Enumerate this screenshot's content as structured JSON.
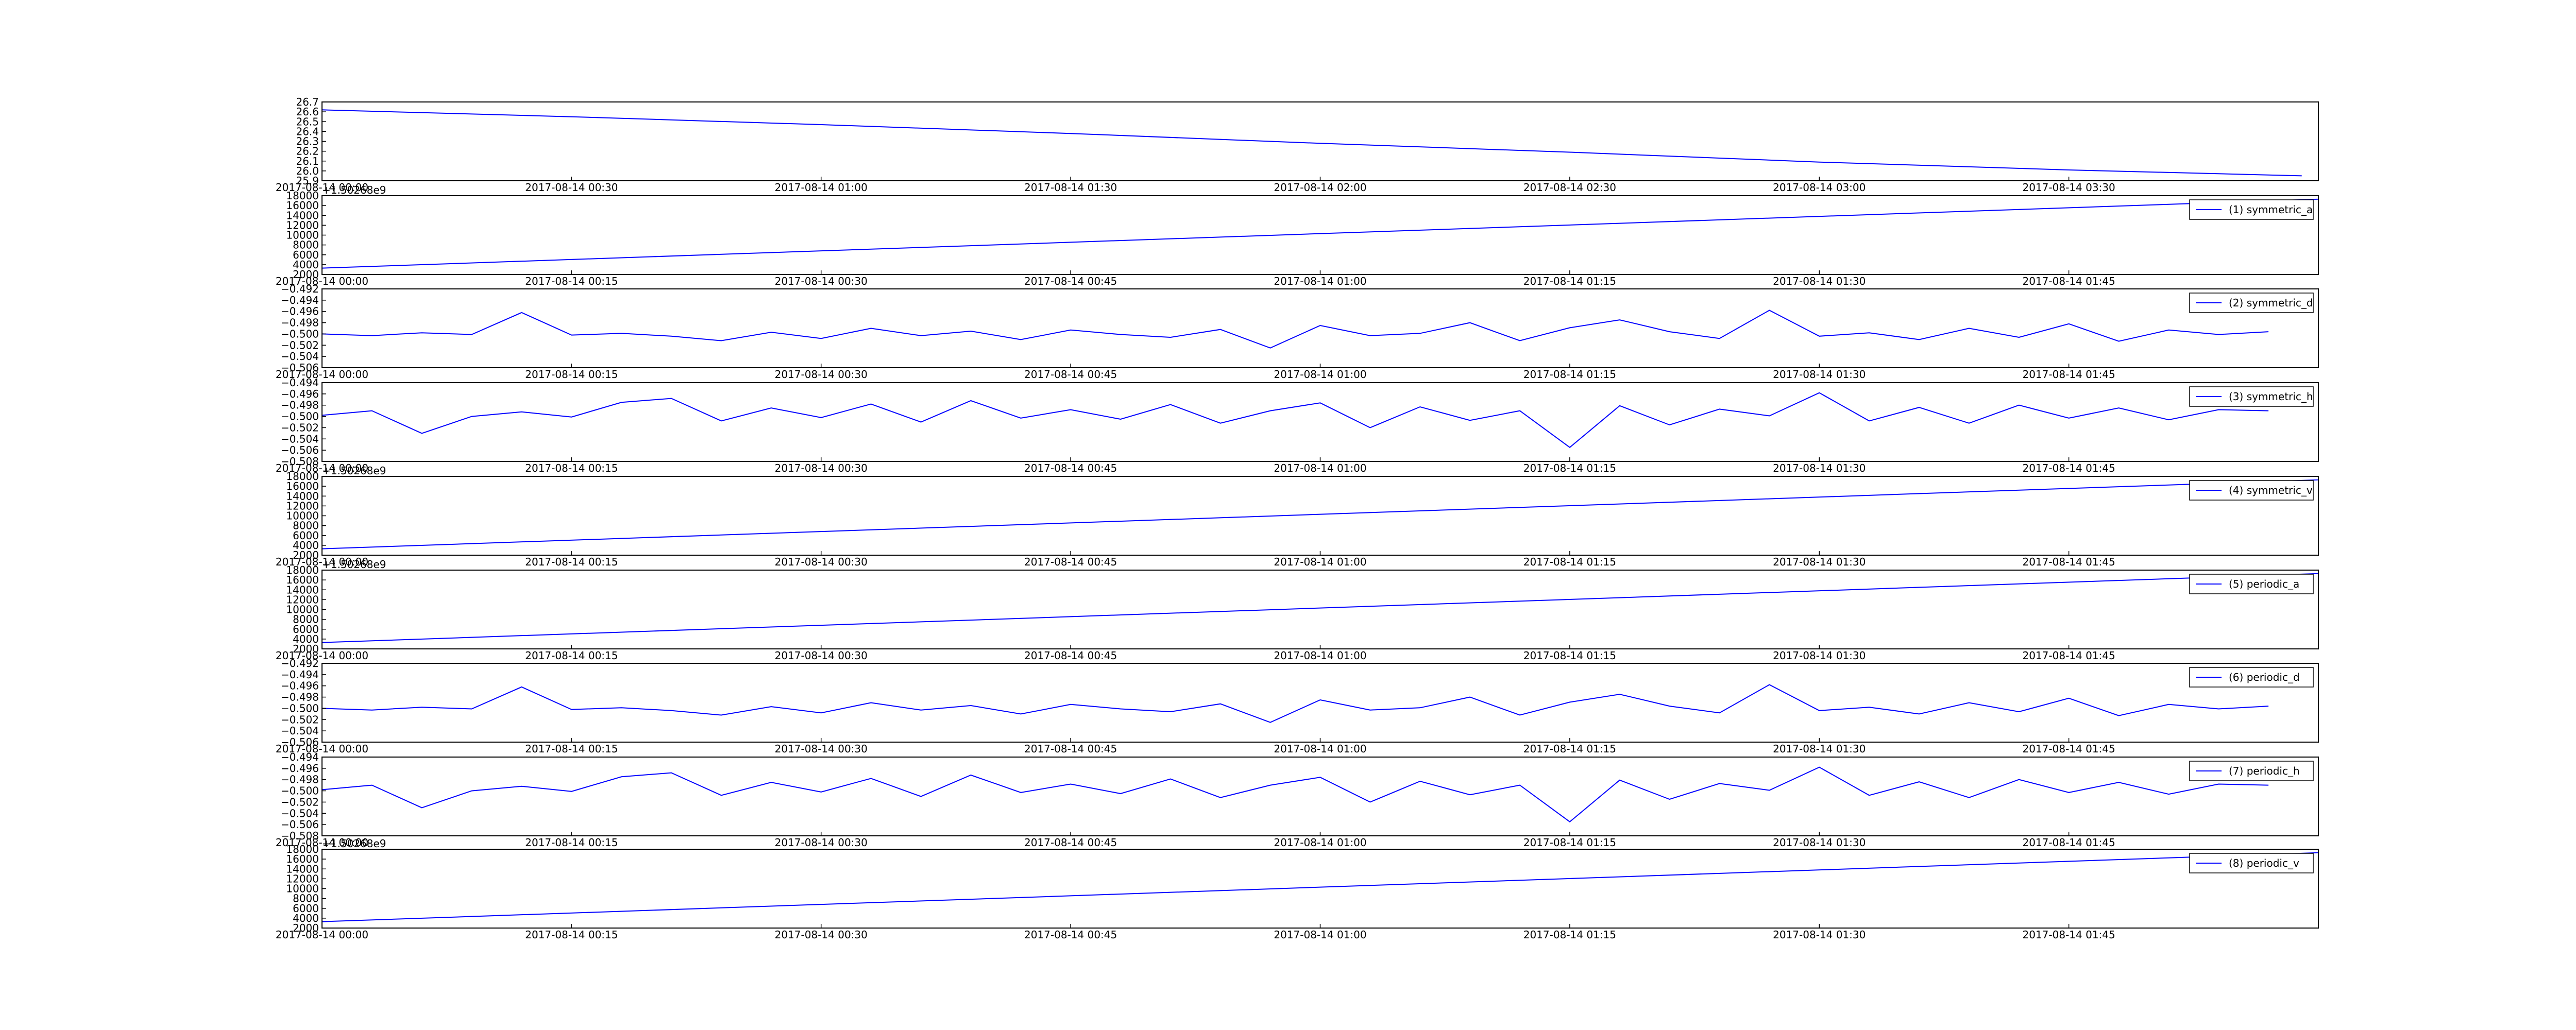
{
  "chart_data": [
    {
      "type": "line",
      "x": [
        "2017-08-14 00:00",
        "2017-08-14 00:30",
        "2017-08-14 01:00",
        "2017-08-14 01:30",
        "2017-08-14 02:00",
        "2017-08-14 02:30",
        "2017-08-14 03:00",
        "2017-08-14 03:30",
        "2017-08-14 03:58"
      ],
      "series": [
        {
          "color": "#0000ff",
          "values": [
            26.62,
            26.55,
            26.47,
            26.38,
            26.28,
            26.19,
            26.09,
            26.01,
            25.95
          ]
        }
      ],
      "xlim": [
        "2017-08-14 00:00",
        "2017-08-14 04:00"
      ],
      "xticks": [
        "2017-08-14 00:00",
        "2017-08-14 00:30",
        "2017-08-14 01:00",
        "2017-08-14 01:30",
        "2017-08-14 02:00",
        "2017-08-14 02:30",
        "2017-08-14 03:00",
        "2017-08-14 03:30"
      ],
      "ylim": [
        25.9,
        26.7
      ],
      "yticks": [
        25.9,
        {
          "value": 26,
          "label": "26.0"
        },
        26.1,
        26.2,
        26.3,
        26.4,
        26.5,
        26.6,
        26.7
      ]
    },
    {
      "type": "line",
      "offset_text": "+1.50268e9",
      "x": [
        "2017-08-14 00:00",
        "2017-08-14 02:00"
      ],
      "series": [
        {
          "name": "(1) symmetric_a",
          "color": "#0000ff",
          "values": [
            3300,
            17300
          ]
        }
      ],
      "xlim": [
        "2017-08-14 00:00",
        "2017-08-14 02:00"
      ],
      "xticks": [
        "2017-08-14 00:00",
        "2017-08-14 00:15",
        "2017-08-14 00:30",
        "2017-08-14 00:45",
        "2017-08-14 01:00",
        "2017-08-14 01:15",
        "2017-08-14 01:30",
        "2017-08-14 01:45"
      ],
      "ylim": [
        2000,
        18000
      ],
      "yticks": [
        2000,
        4000,
        6000,
        8000,
        10000,
        12000,
        14000,
        16000,
        18000
      ]
    },
    {
      "type": "line",
      "x": [
        "2017-08-14 00:00",
        "2017-08-14 00:03",
        "2017-08-14 00:06",
        "2017-08-14 00:09",
        "2017-08-14 00:12",
        "2017-08-14 00:15",
        "2017-08-14 00:18",
        "2017-08-14 00:21",
        "2017-08-14 00:24",
        "2017-08-14 00:27",
        "2017-08-14 00:30",
        "2017-08-14 00:33",
        "2017-08-14 00:36",
        "2017-08-14 00:39",
        "2017-08-14 00:42",
        "2017-08-14 00:45",
        "2017-08-14 00:48",
        "2017-08-14 00:51",
        "2017-08-14 00:54",
        "2017-08-14 00:57",
        "2017-08-14 01:00",
        "2017-08-14 01:03",
        "2017-08-14 01:06",
        "2017-08-14 01:09",
        "2017-08-14 01:12",
        "2017-08-14 01:15",
        "2017-08-14 01:18",
        "2017-08-14 01:21",
        "2017-08-14 01:24",
        "2017-08-14 01:27",
        "2017-08-14 01:30",
        "2017-08-14 01:33",
        "2017-08-14 01:36",
        "2017-08-14 01:39",
        "2017-08-14 01:42",
        "2017-08-14 01:45",
        "2017-08-14 01:48",
        "2017-08-14 01:51",
        "2017-08-14 01:54",
        "2017-08-14 01:57"
      ],
      "series": [
        {
          "name": "(2) symmetric_d",
          "color": "#0000ff",
          "values": [
            -0.5,
            -0.5003,
            -0.4998,
            -0.5001,
            -0.4962,
            -0.5002,
            -0.4999,
            -0.5004,
            -0.5012,
            -0.4997,
            -0.5008,
            -0.499,
            -0.5003,
            -0.4995,
            -0.501,
            -0.4993,
            -0.5001,
            -0.5006,
            -0.4992,
            -0.5025,
            -0.4985,
            -0.5003,
            -0.4999,
            -0.498,
            -0.5012,
            -0.4989,
            -0.4975,
            -0.4996,
            -0.5008,
            -0.4958,
            -0.5004,
            -0.4998,
            -0.501,
            -0.499,
            -0.5006,
            -0.4982,
            -0.5013,
            -0.4993,
            -0.5001,
            -0.4996
          ]
        }
      ],
      "xlim": [
        "2017-08-14 00:00",
        "2017-08-14 02:00"
      ],
      "xticks": [
        "2017-08-14 00:00",
        "2017-08-14 00:15",
        "2017-08-14 00:30",
        "2017-08-14 00:45",
        "2017-08-14 01:00",
        "2017-08-14 01:15",
        "2017-08-14 01:30",
        "2017-08-14 01:45"
      ],
      "ylim": [
        -0.506,
        -0.492
      ],
      "yticks": [
        {
          "value": -0.506,
          "label": "−0.506"
        },
        {
          "value": -0.504,
          "label": "−0.504"
        },
        {
          "value": -0.502,
          "label": "−0.502"
        },
        {
          "value": -0.5,
          "label": "−0.500"
        },
        {
          "value": -0.498,
          "label": "−0.498"
        },
        {
          "value": -0.496,
          "label": "−0.496"
        },
        {
          "value": -0.494,
          "label": "−0.494"
        },
        {
          "value": -0.492,
          "label": "−0.492"
        }
      ]
    },
    {
      "type": "line",
      "x": [
        "2017-08-14 00:00",
        "2017-08-14 00:03",
        "2017-08-14 00:06",
        "2017-08-14 00:09",
        "2017-08-14 00:12",
        "2017-08-14 00:15",
        "2017-08-14 00:18",
        "2017-08-14 00:21",
        "2017-08-14 00:24",
        "2017-08-14 00:27",
        "2017-08-14 00:30",
        "2017-08-14 00:33",
        "2017-08-14 00:36",
        "2017-08-14 00:39",
        "2017-08-14 00:42",
        "2017-08-14 00:45",
        "2017-08-14 00:48",
        "2017-08-14 00:51",
        "2017-08-14 00:54",
        "2017-08-14 00:57",
        "2017-08-14 01:00",
        "2017-08-14 01:03",
        "2017-08-14 01:06",
        "2017-08-14 01:09",
        "2017-08-14 01:12",
        "2017-08-14 01:15",
        "2017-08-14 01:18",
        "2017-08-14 01:21",
        "2017-08-14 01:24",
        "2017-08-14 01:27",
        "2017-08-14 01:30",
        "2017-08-14 01:33",
        "2017-08-14 01:36",
        "2017-08-14 01:39",
        "2017-08-14 01:42",
        "2017-08-14 01:45",
        "2017-08-14 01:48",
        "2017-08-14 01:51",
        "2017-08-14 01:54",
        "2017-08-14 01:57"
      ],
      "series": [
        {
          "name": "(3) symmetric_h",
          "color": "#0000ff",
          "values": [
            -0.4998,
            -0.499,
            -0.503,
            -0.5,
            -0.4992,
            -0.5001,
            -0.4975,
            -0.4968,
            -0.5008,
            -0.4985,
            -0.5002,
            -0.4978,
            -0.501,
            -0.4972,
            -0.5003,
            -0.4988,
            -0.5005,
            -0.4979,
            -0.5012,
            -0.499,
            -0.4976,
            -0.502,
            -0.4983,
            -0.5007,
            -0.499,
            -0.5055,
            -0.4981,
            -0.5015,
            -0.4987,
            -0.4999,
            -0.4958,
            -0.5008,
            -0.4984,
            -0.5012,
            -0.498,
            -0.5003,
            -0.4985,
            -0.5006,
            -0.4988,
            -0.499
          ]
        }
      ],
      "xlim": [
        "2017-08-14 00:00",
        "2017-08-14 02:00"
      ],
      "xticks": [
        "2017-08-14 00:00",
        "2017-08-14 00:15",
        "2017-08-14 00:30",
        "2017-08-14 00:45",
        "2017-08-14 01:00",
        "2017-08-14 01:15",
        "2017-08-14 01:30",
        "2017-08-14 01:45"
      ],
      "ylim": [
        -0.508,
        -0.494
      ],
      "yticks": [
        {
          "value": -0.508,
          "label": "−0.508"
        },
        {
          "value": -0.506,
          "label": "−0.506"
        },
        {
          "value": -0.504,
          "label": "−0.504"
        },
        {
          "value": -0.502,
          "label": "−0.502"
        },
        {
          "value": -0.5,
          "label": "−0.500"
        },
        {
          "value": -0.498,
          "label": "−0.498"
        },
        {
          "value": -0.496,
          "label": "−0.496"
        },
        {
          "value": -0.494,
          "label": "−0.494"
        }
      ]
    },
    {
      "type": "line",
      "offset_text": "+1.50268e9",
      "x": [
        "2017-08-14 00:00",
        "2017-08-14 02:00"
      ],
      "series": [
        {
          "name": "(4) symmetric_v",
          "color": "#0000ff",
          "values": [
            3300,
            17300
          ]
        }
      ],
      "xlim": [
        "2017-08-14 00:00",
        "2017-08-14 02:00"
      ],
      "xticks": [
        "2017-08-14 00:00",
        "2017-08-14 00:15",
        "2017-08-14 00:30",
        "2017-08-14 00:45",
        "2017-08-14 01:00",
        "2017-08-14 01:15",
        "2017-08-14 01:30",
        "2017-08-14 01:45"
      ],
      "ylim": [
        2000,
        18000
      ],
      "yticks": [
        2000,
        4000,
        6000,
        8000,
        10000,
        12000,
        14000,
        16000,
        18000
      ]
    },
    {
      "type": "line",
      "offset_text": "+1.50268e9",
      "x": [
        "2017-08-14 00:00",
        "2017-08-14 02:00"
      ],
      "series": [
        {
          "name": "(5) periodic_a",
          "color": "#0000ff",
          "values": [
            3300,
            17300
          ]
        }
      ],
      "xlim": [
        "2017-08-14 00:00",
        "2017-08-14 02:00"
      ],
      "xticks": [
        "2017-08-14 00:00",
        "2017-08-14 00:15",
        "2017-08-14 00:30",
        "2017-08-14 00:45",
        "2017-08-14 01:00",
        "2017-08-14 01:15",
        "2017-08-14 01:30",
        "2017-08-14 01:45"
      ],
      "ylim": [
        2000,
        18000
      ],
      "yticks": [
        2000,
        4000,
        6000,
        8000,
        10000,
        12000,
        14000,
        16000,
        18000
      ]
    },
    {
      "type": "line",
      "x": [
        "2017-08-14 00:00",
        "2017-08-14 00:03",
        "2017-08-14 00:06",
        "2017-08-14 00:09",
        "2017-08-14 00:12",
        "2017-08-14 00:15",
        "2017-08-14 00:18",
        "2017-08-14 00:21",
        "2017-08-14 00:24",
        "2017-08-14 00:27",
        "2017-08-14 00:30",
        "2017-08-14 00:33",
        "2017-08-14 00:36",
        "2017-08-14 00:39",
        "2017-08-14 00:42",
        "2017-08-14 00:45",
        "2017-08-14 00:48",
        "2017-08-14 00:51",
        "2017-08-14 00:54",
        "2017-08-14 00:57",
        "2017-08-14 01:00",
        "2017-08-14 01:03",
        "2017-08-14 01:06",
        "2017-08-14 01:09",
        "2017-08-14 01:12",
        "2017-08-14 01:15",
        "2017-08-14 01:18",
        "2017-08-14 01:21",
        "2017-08-14 01:24",
        "2017-08-14 01:27",
        "2017-08-14 01:30",
        "2017-08-14 01:33",
        "2017-08-14 01:36",
        "2017-08-14 01:39",
        "2017-08-14 01:42",
        "2017-08-14 01:45",
        "2017-08-14 01:48",
        "2017-08-14 01:51",
        "2017-08-14 01:54",
        "2017-08-14 01:57"
      ],
      "series": [
        {
          "name": "(6) periodic_d",
          "color": "#0000ff",
          "values": [
            -0.5,
            -0.5003,
            -0.4998,
            -0.5001,
            -0.4962,
            -0.5002,
            -0.4999,
            -0.5004,
            -0.5012,
            -0.4997,
            -0.5008,
            -0.499,
            -0.5003,
            -0.4995,
            -0.501,
            -0.4993,
            -0.5001,
            -0.5006,
            -0.4992,
            -0.5025,
            -0.4985,
            -0.5003,
            -0.4999,
            -0.498,
            -0.5012,
            -0.4989,
            -0.4975,
            -0.4996,
            -0.5008,
            -0.4958,
            -0.5004,
            -0.4998,
            -0.501,
            -0.499,
            -0.5006,
            -0.4982,
            -0.5013,
            -0.4993,
            -0.5001,
            -0.4996
          ]
        }
      ],
      "xlim": [
        "2017-08-14 00:00",
        "2017-08-14 02:00"
      ],
      "xticks": [
        "2017-08-14 00:00",
        "2017-08-14 00:15",
        "2017-08-14 00:30",
        "2017-08-14 00:45",
        "2017-08-14 01:00",
        "2017-08-14 01:15",
        "2017-08-14 01:30",
        "2017-08-14 01:45"
      ],
      "ylim": [
        -0.506,
        -0.492
      ],
      "yticks": [
        {
          "value": -0.506,
          "label": "−0.506"
        },
        {
          "value": -0.504,
          "label": "−0.504"
        },
        {
          "value": -0.502,
          "label": "−0.502"
        },
        {
          "value": -0.5,
          "label": "−0.500"
        },
        {
          "value": -0.498,
          "label": "−0.498"
        },
        {
          "value": -0.496,
          "label": "−0.496"
        },
        {
          "value": -0.494,
          "label": "−0.494"
        },
        {
          "value": -0.492,
          "label": "−0.492"
        }
      ]
    },
    {
      "type": "line",
      "x": [
        "2017-08-14 00:00",
        "2017-08-14 00:03",
        "2017-08-14 00:06",
        "2017-08-14 00:09",
        "2017-08-14 00:12",
        "2017-08-14 00:15",
        "2017-08-14 00:18",
        "2017-08-14 00:21",
        "2017-08-14 00:24",
        "2017-08-14 00:27",
        "2017-08-14 00:30",
        "2017-08-14 00:33",
        "2017-08-14 00:36",
        "2017-08-14 00:39",
        "2017-08-14 00:42",
        "2017-08-14 00:45",
        "2017-08-14 00:48",
        "2017-08-14 00:51",
        "2017-08-14 00:54",
        "2017-08-14 00:57",
        "2017-08-14 01:00",
        "2017-08-14 01:03",
        "2017-08-14 01:06",
        "2017-08-14 01:09",
        "2017-08-14 01:12",
        "2017-08-14 01:15",
        "2017-08-14 01:18",
        "2017-08-14 01:21",
        "2017-08-14 01:24",
        "2017-08-14 01:27",
        "2017-08-14 01:30",
        "2017-08-14 01:33",
        "2017-08-14 01:36",
        "2017-08-14 01:39",
        "2017-08-14 01:42",
        "2017-08-14 01:45",
        "2017-08-14 01:48",
        "2017-08-14 01:51",
        "2017-08-14 01:54",
        "2017-08-14 01:57"
      ],
      "series": [
        {
          "name": "(7) periodic_h",
          "color": "#0000ff",
          "values": [
            -0.4998,
            -0.499,
            -0.503,
            -0.5,
            -0.4992,
            -0.5001,
            -0.4975,
            -0.4968,
            -0.5008,
            -0.4985,
            -0.5002,
            -0.4978,
            -0.501,
            -0.4972,
            -0.5003,
            -0.4988,
            -0.5005,
            -0.4979,
            -0.5012,
            -0.499,
            -0.4976,
            -0.502,
            -0.4983,
            -0.5007,
            -0.499,
            -0.5055,
            -0.4981,
            -0.5015,
            -0.4987,
            -0.4999,
            -0.4958,
            -0.5008,
            -0.4984,
            -0.5012,
            -0.498,
            -0.5003,
            -0.4985,
            -0.5006,
            -0.4988,
            -0.499
          ]
        }
      ],
      "xlim": [
        "2017-08-14 00:00",
        "2017-08-14 02:00"
      ],
      "xticks": [
        "2017-08-14 00:00",
        "2017-08-14 00:15",
        "2017-08-14 00:30",
        "2017-08-14 00:45",
        "2017-08-14 01:00",
        "2017-08-14 01:15",
        "2017-08-14 01:30",
        "2017-08-14 01:45"
      ],
      "ylim": [
        -0.508,
        -0.494
      ],
      "yticks": [
        {
          "value": -0.508,
          "label": "−0.508"
        },
        {
          "value": -0.506,
          "label": "−0.506"
        },
        {
          "value": -0.504,
          "label": "−0.504"
        },
        {
          "value": -0.502,
          "label": "−0.502"
        },
        {
          "value": -0.5,
          "label": "−0.500"
        },
        {
          "value": -0.498,
          "label": "−0.498"
        },
        {
          "value": -0.496,
          "label": "−0.496"
        },
        {
          "value": -0.494,
          "label": "−0.494"
        }
      ]
    },
    {
      "type": "line",
      "offset_text": "+1.50268e9",
      "x": [
        "2017-08-14 00:00",
        "2017-08-14 02:00"
      ],
      "series": [
        {
          "name": "(8) periodic_v",
          "color": "#0000ff",
          "values": [
            3300,
            17300
          ]
        }
      ],
      "xlim": [
        "2017-08-14 00:00",
        "2017-08-14 02:00"
      ],
      "xticks": [
        "2017-08-14 00:00",
        "2017-08-14 00:15",
        "2017-08-14 00:30",
        "2017-08-14 00:45",
        "2017-08-14 01:00",
        "2017-08-14 01:15",
        "2017-08-14 01:30",
        "2017-08-14 01:45"
      ],
      "ylim": [
        2000,
        18000
      ],
      "yticks": [
        2000,
        4000,
        6000,
        8000,
        10000,
        12000,
        14000,
        16000,
        18000
      ]
    }
  ]
}
